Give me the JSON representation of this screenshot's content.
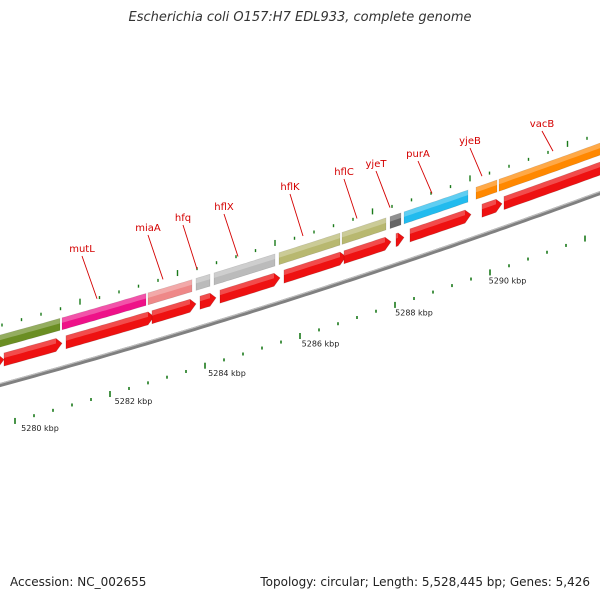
{
  "title": "Escherichia coli O157:H7 EDL933, complete genome",
  "footer": {
    "accession": "Accession: NC_002655",
    "summary": "Topology: circular; Length: 5,528,445 bp; Genes: 5,426"
  },
  "colors": {
    "backbone": "#808080",
    "forward_cds": "#ee1111",
    "tick": "#1a7a1a",
    "label": "#d40000"
  },
  "scale_labels": [
    "5280 kbp",
    "5282 kbp",
    "5284 kbp",
    "5286 kbp",
    "5288 kbp",
    "5290 kbp"
  ],
  "genes": [
    {
      "name": "mutL",
      "color": "#ee1188"
    },
    {
      "name": "miaA",
      "color": "#ee8888"
    },
    {
      "name": "hfq",
      "color": "#bbbbbb"
    },
    {
      "name": "hflX",
      "color": "#bbbbbb"
    },
    {
      "name": "hflK",
      "color": "#b8b870"
    },
    {
      "name": "hflC",
      "color": "#b8b870"
    },
    {
      "name": "yjeT",
      "color": "#666666"
    },
    {
      "name": "purA",
      "color": "#22bbee"
    },
    {
      "name": "yjeB",
      "color": "#ff8800"
    },
    {
      "name": "vacB",
      "color": "#ff8800"
    }
  ]
}
